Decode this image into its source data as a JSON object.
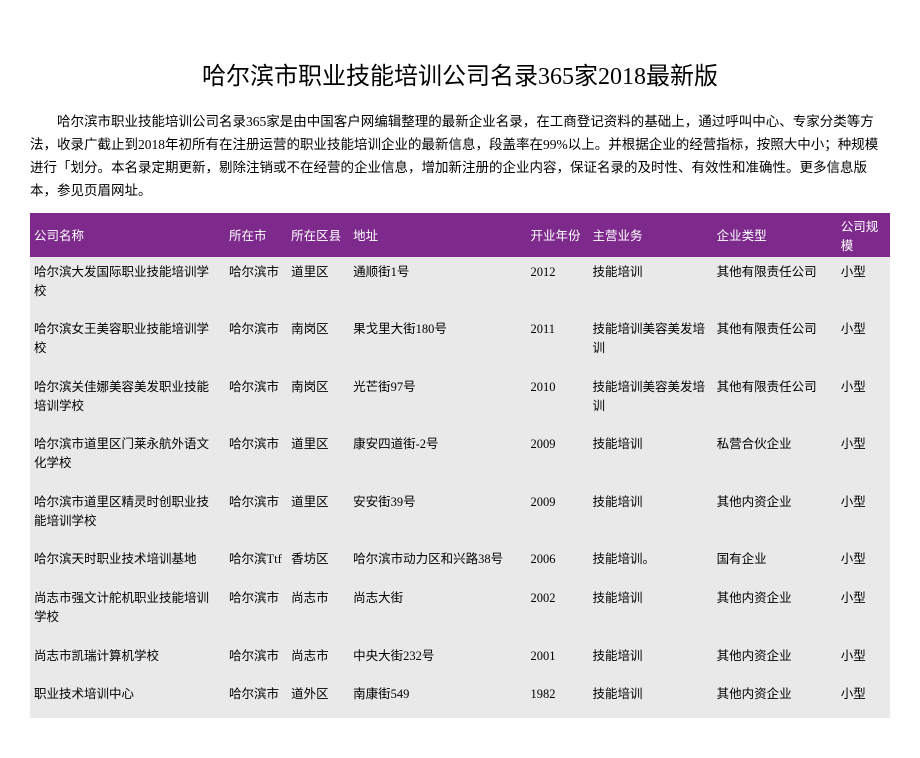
{
  "title": "哈尔滨市职业技能培训公司名录365家2018最新版",
  "intro": "哈尔滨市职业技能培训公司名录365家是由中国客户网编辑整理的最新企业名录，在工商登记资料的基础上，通过呼叫中心、专家分类等方法，收录广截止到2018年初所有在注册运营的职业技能培训企业的最新信息，段盖率在99%以上。并根据企业的经营指标，按照大中小；种规模进行「划分。本名录定期更新，剔除注销或不在经营的企业信息，增加新注册的企业内容，保证名录的及时性、有效性和准确性。更多信息版本，参见页眉网址。",
  "header": {
    "name": "公司名称",
    "city": "所在市",
    "district": "所在区县",
    "address": "地址",
    "year": "开业年份",
    "business": "主营业务",
    "type": "企业类型",
    "scale": "公司规模"
  },
  "rows": [
    {
      "name": "哈尔滨大发国际职业技能培训学校",
      "city": "哈尔滨市",
      "district": "道里区",
      "address": "通顺街1号",
      "year": "2012",
      "business": "技能培训",
      "type": "其他有限责任公司",
      "scale": "小型"
    },
    {
      "name": "哈尔滨女王美容职业技能培训学校",
      "city": "哈尔滨市",
      "district": "南岗区",
      "address": "果戈里大街180号",
      "year": "2011",
      "business": "技能培训美容美发培训",
      "type": "其他有限责任公司",
      "scale": "小型"
    },
    {
      "name": "哈尔滨关佳娜美容美发职业技能培训学校",
      "city": "哈尔滨市",
      "district": "南岗区",
      "address": "光芒街97号",
      "year": "2010",
      "business": "技能培训美容美发培训",
      "type": "其他有限责任公司",
      "scale": "小型"
    },
    {
      "name": "哈尔滨市道里区门莱永航外语文化学校",
      "city": "哈尔滨市",
      "district": "道里区",
      "address": "康安四道街-2号",
      "year": "2009",
      "business": "技能培训",
      "type": "私营合伙企业",
      "scale": "小型"
    },
    {
      "name": "哈尔滨市道里区精灵时创职业技能培训学校",
      "city": "哈尔滨市",
      "district": "道里区",
      "address": "安安街39号",
      "year": "2009",
      "business": "技能培训",
      "type": "其他内资企业",
      "scale": "小型"
    },
    {
      "name": "哈尔滨天时职业技术培训基地",
      "city": "哈尔滨Ttf",
      "district": "香坊区",
      "address": "哈尔滨市动力区和兴路38号",
      "year": "2006",
      "business": "技能培训。",
      "type": "国有企业",
      "scale": "小型"
    },
    {
      "name": "尚志市强文计舵机职业技能培训学校",
      "city": "哈尔滨市",
      "district": "尚志市",
      "address": "尚志大街",
      "year": "2002",
      "business": "技能培训",
      "type": "其他内资企业",
      "scale": "小型"
    },
    {
      "name": "尚志市凯瑞计算机学校",
      "city": "哈尔滨市",
      "district": "尚志市",
      "address": "中央大街232号",
      "year": "2001",
      "business": "技能培训",
      "type": "其他内资企业",
      "scale": "小型"
    },
    {
      "name": "职业技术培训中心",
      "city": "哈尔滨市",
      "district": "道外区",
      "address": "南康街549",
      "year": "1982",
      "business": "技能培训",
      "type": "其他内资企业",
      "scale": "小型"
    }
  ],
  "colors": {
    "header_bg": "#7d2a8c",
    "header_fg": "#ffffff",
    "row_bg": "#e9e9e9",
    "page_bg": "#ffffff",
    "text": "#000000"
  }
}
